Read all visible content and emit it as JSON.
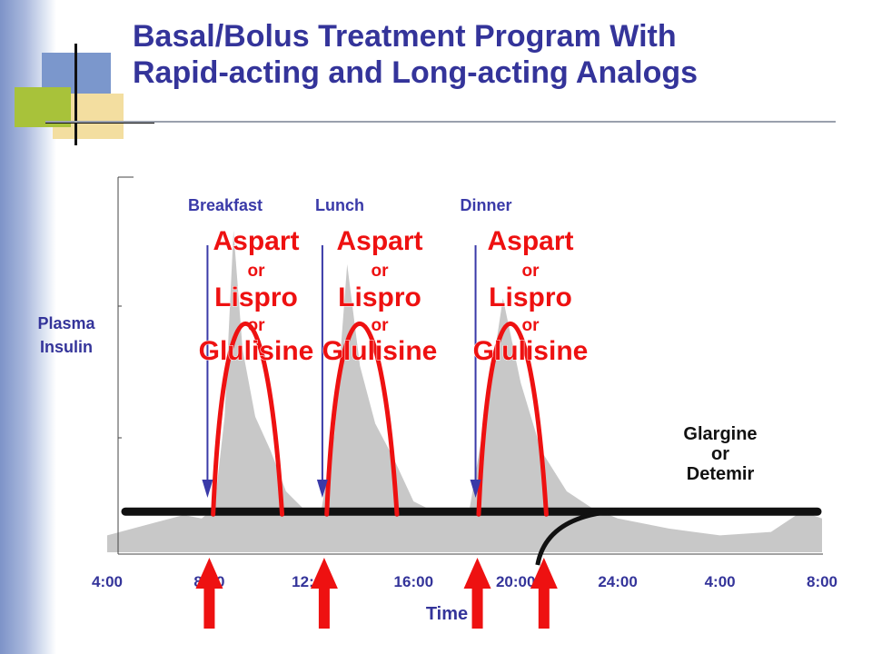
{
  "slide": {
    "title_line1": "Basal/Bolus Treatment Program With",
    "title_line2": "Rapid-acting and Long-acting Analogs",
    "accent_colors": {
      "title": "#34349a",
      "bolus": "#ee1111",
      "basal": "#111111",
      "meal": "#3a3aa8",
      "profile": "#c8c8c8"
    }
  },
  "chart_data": {
    "type": "line",
    "xlabel": "Time",
    "ylabel": [
      "Plasma",
      "Insulin"
    ],
    "x_ticks": [
      "4:00",
      "8:00",
      "12:00",
      "16:00",
      "20:00",
      "24:00",
      "4:00",
      "8:00"
    ],
    "x_range_hours": [
      4,
      32
    ],
    "meals": [
      {
        "name": "Breakfast",
        "time": 8.0
      },
      {
        "name": "Lunch",
        "time": 12.5
      },
      {
        "name": "Dinner",
        "time": 18.5
      }
    ],
    "bolus_label": [
      "Aspart",
      "or",
      "Lispro",
      "or",
      "Glulisine"
    ],
    "basal_label": [
      "Glargine",
      "or",
      "Detemir"
    ],
    "injection_arrows_hours": [
      8.0,
      12.5,
      18.5,
      21.0
    ],
    "physiologic_profile": [
      [
        4,
        0.05
      ],
      [
        5,
        0.07
      ],
      [
        6,
        0.09
      ],
      [
        7,
        0.11
      ],
      [
        7.7,
        0.1
      ],
      [
        8.2,
        0.13
      ],
      [
        8.6,
        0.4
      ],
      [
        8.95,
        0.95
      ],
      [
        9.3,
        0.6
      ],
      [
        9.8,
        0.4
      ],
      [
        10.4,
        0.3
      ],
      [
        11,
        0.18
      ],
      [
        11.8,
        0.12
      ],
      [
        12.4,
        0.13
      ],
      [
        12.9,
        0.35
      ],
      [
        13.4,
        0.85
      ],
      [
        13.9,
        0.55
      ],
      [
        14.5,
        0.38
      ],
      [
        15.2,
        0.28
      ],
      [
        16,
        0.15
      ],
      [
        16.8,
        0.12
      ],
      [
        18.2,
        0.13
      ],
      [
        18.8,
        0.4
      ],
      [
        19.5,
        0.75
      ],
      [
        20.2,
        0.5
      ],
      [
        21,
        0.3
      ],
      [
        22,
        0.18
      ],
      [
        23,
        0.13
      ],
      [
        24,
        0.1
      ],
      [
        26,
        0.07
      ],
      [
        28,
        0.05
      ],
      [
        30,
        0.06
      ],
      [
        31.2,
        0.12
      ],
      [
        32,
        0.1
      ]
    ],
    "bolus_curves": [
      {
        "start": 8.15,
        "end": 10.85,
        "peak": 0.6
      },
      {
        "start": 12.6,
        "end": 15.35,
        "peak": 0.6
      },
      {
        "start": 18.55,
        "end": 21.2,
        "peak": 0.6
      }
    ],
    "basal_level": 0.12,
    "basal_onset": 21.0
  }
}
